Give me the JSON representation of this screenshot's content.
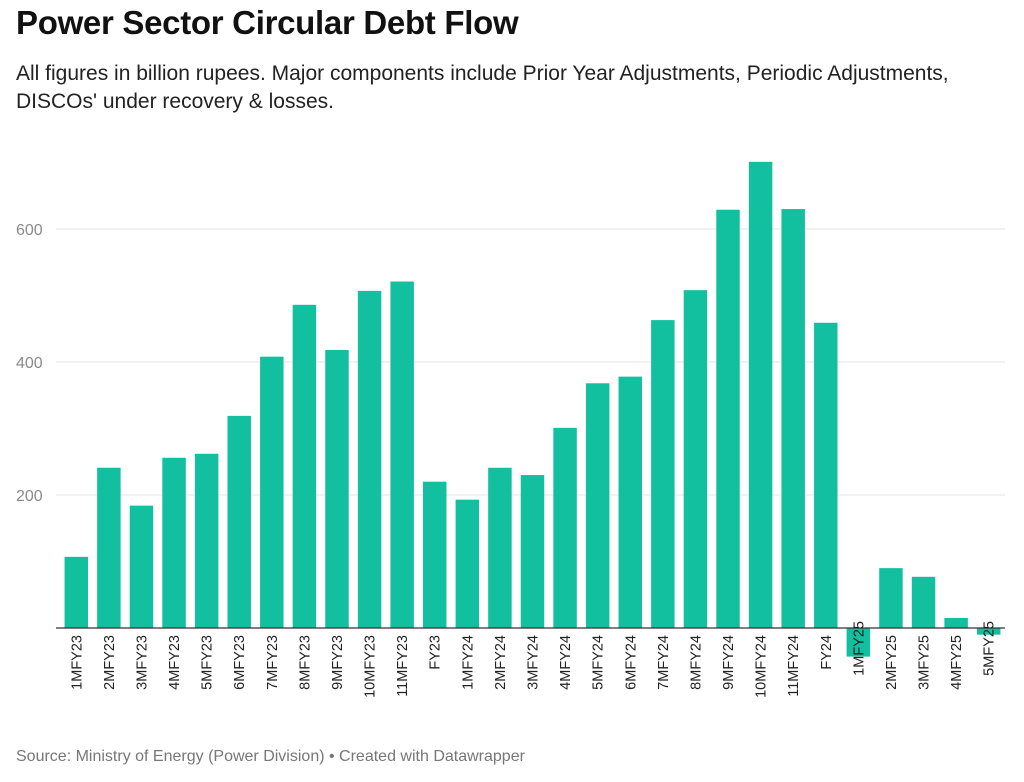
{
  "title": "Power Sector Circular Debt Flow",
  "subtitle": "All figures in billion rupees. Major components include Prior Year Adjustments, Periodic Adjustments, DISCOs' under recovery & losses.",
  "footer": {
    "source": "Source: Ministry of Energy (Power Division)",
    "separator": " • ",
    "credit": "Created with Datawrapper"
  },
  "chart_data": {
    "type": "bar",
    "categories": [
      "1MFY23",
      "2MFY23",
      "3MFY23",
      "4MFY23",
      "5MFY23",
      "6MFY23",
      "7MFY23",
      "8MFY23",
      "9MFY23",
      "10MFY23",
      "11MFY23",
      "FY23",
      "1MFY24",
      "2MFY24",
      "3MFY24",
      "4MFY24",
      "5MFY24",
      "6MFY24",
      "7MFY24",
      "8MFY24",
      "9MFY24",
      "10MFY24",
      "11MFY24",
      "FY24",
      "1MFY25",
      "2MFY25",
      "3MFY25",
      "4MFY25",
      "5MFY25"
    ],
    "values": [
      107,
      241,
      184,
      256,
      262,
      319,
      408,
      486,
      418,
      507,
      521,
      220,
      193,
      241,
      230,
      301,
      368,
      378,
      463,
      508,
      629,
      701,
      630,
      459,
      -43,
      90,
      77,
      15,
      -10
    ],
    "yticks": [
      200,
      400,
      600
    ],
    "ylim": [
      -60,
      720
    ],
    "grid": true,
    "bar_color": "#12bf9e"
  }
}
